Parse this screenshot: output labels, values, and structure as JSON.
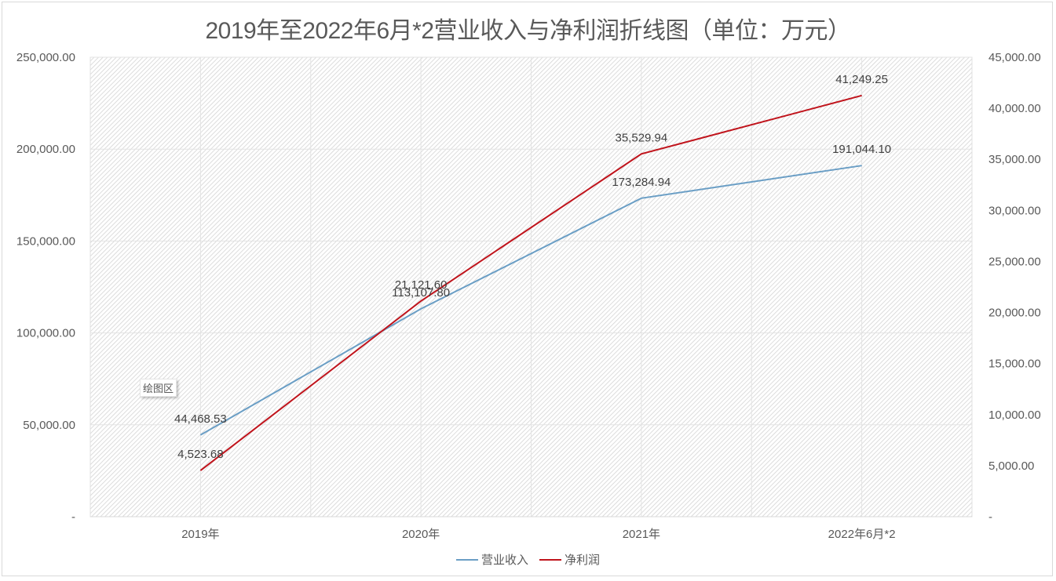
{
  "chart_data": {
    "type": "line",
    "title": "2019年至2022年6月*2营业收入与净利润折线图（单位：万元）",
    "categories": [
      "2019年",
      "2020年",
      "2021年",
      "2022年6月*2"
    ],
    "series": [
      {
        "name": "营业收入",
        "axis": "left",
        "color": "#6a9ec5",
        "values": [
          44468.53,
          113107.8,
          173284.94,
          191044.1
        ],
        "labels": [
          "44,468.53",
          "113,107.80",
          "173,284.94",
          "191,044.10"
        ]
      },
      {
        "name": "净利润",
        "axis": "right",
        "color": "#c0141c",
        "values": [
          4523.68,
          21121.6,
          35529.94,
          41249.25
        ],
        "labels": [
          "4,523.68",
          "21,121.60",
          "35,529.94",
          "41,249.25"
        ]
      }
    ],
    "left_axis": {
      "ylim": [
        0,
        250000
      ],
      "ticks": [
        "-",
        "50,000.00",
        "100,000.00",
        "150,000.00",
        "200,000.00",
        "250,000.00"
      ]
    },
    "right_axis": {
      "ylim": [
        0,
        45000
      ],
      "ticks": [
        "-",
        "5,000.00",
        "10,000.00",
        "15,000.00",
        "20,000.00",
        "25,000.00",
        "30,000.00",
        "35,000.00",
        "40,000.00",
        "45,000.00"
      ]
    },
    "xlabel": "",
    "ylabel": "",
    "grid": true,
    "legend_position": "bottom"
  },
  "tooltip": {
    "label": "绘图区"
  },
  "colors": {
    "revenue": "#6a9ec5",
    "profit": "#c0141c",
    "text": "#595959"
  }
}
